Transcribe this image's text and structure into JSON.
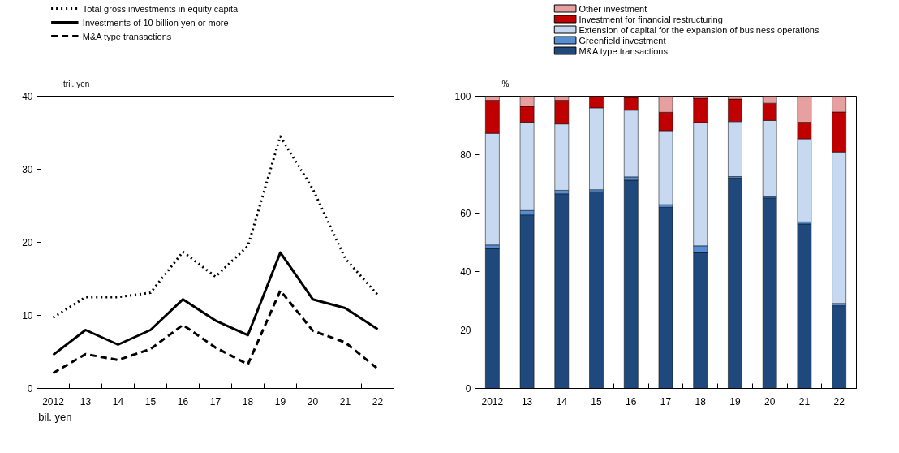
{
  "chart_data": [
    {
      "type": "line",
      "categories": [
        "2012",
        "13",
        "14",
        "15",
        "16",
        "17",
        "18",
        "19",
        "20",
        "21",
        "22"
      ],
      "ylabel": "tril. yen",
      "ylim": [
        0,
        40
      ],
      "yticks": [
        0,
        10,
        20,
        30,
        40
      ],
      "grid": false,
      "legend": "top left",
      "annotations": [
        "bil. yen"
      ],
      "series": [
        {
          "name": "Total gross investments in equity capital",
          "color": "#000000",
          "line_style": "dotted",
          "values": [
            9.7,
            12.5,
            12.5,
            13.1,
            18.7,
            15.3,
            19.5,
            34.5,
            27.3,
            17.8,
            12.8
          ]
        },
        {
          "name": "Investments of 10 billion yen or more",
          "color": "#000000",
          "line_style": "solid",
          "values": [
            4.6,
            8.0,
            6.0,
            8.0,
            12.2,
            9.3,
            7.3,
            18.6,
            12.2,
            11.0,
            8.1
          ]
        },
        {
          "name": "M&A type transactions",
          "color": "#000000",
          "line_style": "dashed",
          "values": [
            2.1,
            4.7,
            3.9,
            5.4,
            8.7,
            5.6,
            3.3,
            13.4,
            7.9,
            6.3,
            2.7
          ]
        }
      ]
    },
    {
      "type": "bar",
      "stacked": true,
      "categories": [
        "2012",
        "13",
        "14",
        "15",
        "16",
        "17",
        "18",
        "19",
        "20",
        "21",
        "22"
      ],
      "ylabel": "%",
      "ylim": [
        0,
        100
      ],
      "yticks": [
        0,
        20,
        40,
        60,
        80,
        100
      ],
      "grid": false,
      "legend": "top",
      "series": [
        {
          "name": "M&A type transactions",
          "color": "#1f497d",
          "values": [
            47.9,
            59.4,
            66.6,
            67.3,
            71.3,
            62.0,
            46.5,
            72.0,
            65.2,
            56.3,
            28.3
          ]
        },
        {
          "name": "Greenfield investment",
          "color": "#558ed5",
          "values": [
            1.2,
            1.5,
            1.2,
            0.7,
            1.1,
            0.9,
            2.3,
            0.5,
            0.5,
            0.7,
            0.8
          ]
        },
        {
          "name": "Extension of capital for the expansion of business operations",
          "color": "#c6d9f1",
          "values": [
            38.2,
            30.2,
            22.7,
            28.0,
            22.8,
            25.3,
            42.2,
            18.8,
            26.0,
            28.4,
            51.8
          ]
        },
        {
          "name": "Investment for financial restructuring",
          "color": "#c00000",
          "values": [
            11.3,
            5.4,
            8.1,
            4.0,
            4.4,
            6.3,
            8.3,
            7.7,
            5.9,
            5.7,
            13.7
          ]
        },
        {
          "name": "Other investment",
          "color": "#e6a0a0",
          "values": [
            1.4,
            3.5,
            1.4,
            0.0,
            0.4,
            5.5,
            0.7,
            1.0,
            2.4,
            8.9,
            5.4
          ]
        }
      ]
    }
  ]
}
